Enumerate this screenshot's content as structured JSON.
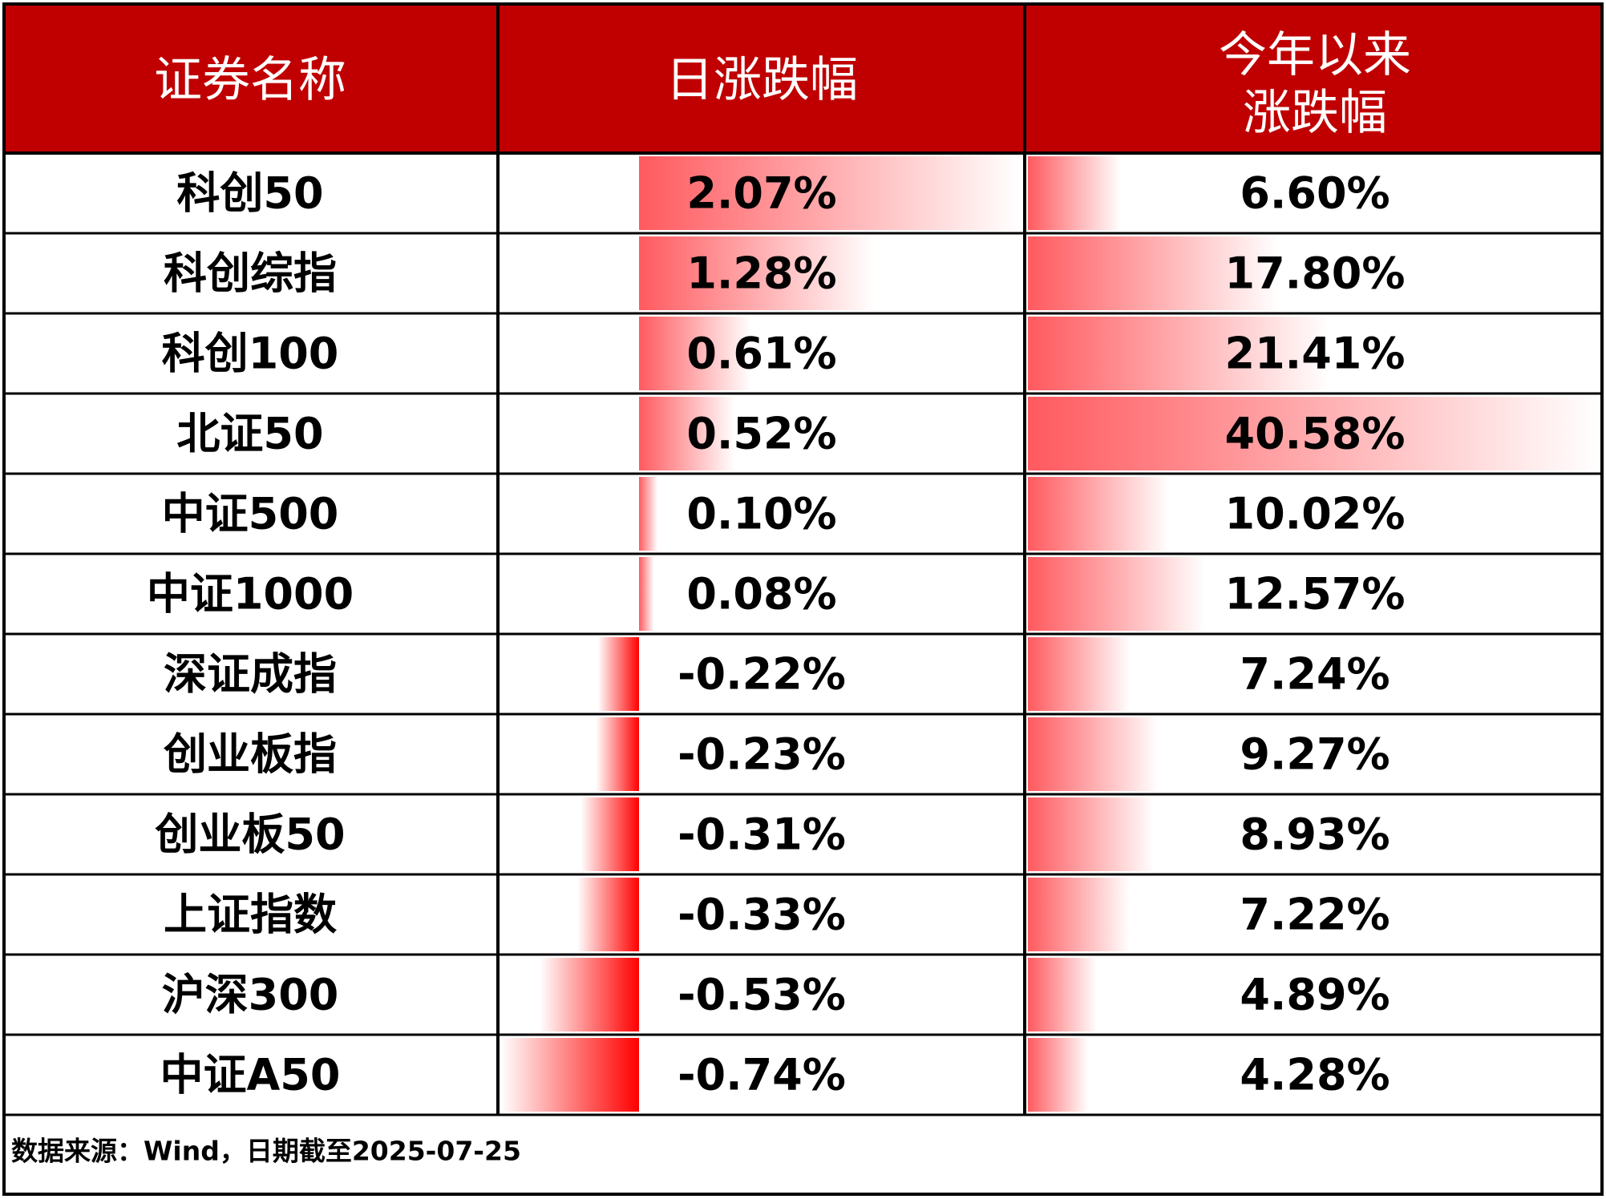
{
  "chart_data": {
    "type": "table",
    "header": {
      "name": "证券名称",
      "daily": "日涨跌幅",
      "ytd_line1": "今年以来",
      "ytd_line2": "涨跌幅"
    },
    "rows": [
      {
        "name": "科创50",
        "daily": 2.07,
        "daily_label": "2.07%",
        "ytd": 6.6,
        "ytd_label": "6.60%"
      },
      {
        "name": "科创综指",
        "daily": 1.28,
        "daily_label": "1.28%",
        "ytd": 17.8,
        "ytd_label": "17.80%"
      },
      {
        "name": "科创100",
        "daily": 0.61,
        "daily_label": "0.61%",
        "ytd": 21.41,
        "ytd_label": "21.41%"
      },
      {
        "name": "北证50",
        "daily": 0.52,
        "daily_label": "0.52%",
        "ytd": 40.58,
        "ytd_label": "40.58%"
      },
      {
        "name": "中证500",
        "daily": 0.1,
        "daily_label": "0.10%",
        "ytd": 10.02,
        "ytd_label": "10.02%"
      },
      {
        "name": "中证1000",
        "daily": 0.08,
        "daily_label": "0.08%",
        "ytd": 12.57,
        "ytd_label": "12.57%"
      },
      {
        "name": "深证成指",
        "daily": -0.22,
        "daily_label": "-0.22%",
        "ytd": 7.24,
        "ytd_label": "7.24%"
      },
      {
        "name": "创业板指",
        "daily": -0.23,
        "daily_label": "-0.23%",
        "ytd": 9.27,
        "ytd_label": "9.27%"
      },
      {
        "name": "创业板50",
        "daily": -0.31,
        "daily_label": "-0.31%",
        "ytd": 8.93,
        "ytd_label": "8.93%"
      },
      {
        "name": "上证指数",
        "daily": -0.33,
        "daily_label": "-0.33%",
        "ytd": 7.22,
        "ytd_label": "7.22%"
      },
      {
        "name": "沪深300",
        "daily": -0.53,
        "daily_label": "-0.53%",
        "ytd": 4.89,
        "ytd_label": "4.89%"
      },
      {
        "name": "中证A50",
        "daily": -0.74,
        "daily_label": "-0.74%",
        "ytd": 4.28,
        "ytd_label": "4.28%"
      }
    ],
    "footer": "数据来源：Wind，日期截至2025-07-25"
  },
  "colors": {
    "header_bg": "#c00000",
    "header_text": "#ffffff",
    "positive_bar": "#ff5a5f",
    "negative_bar": "#ff0000",
    "grid": "#000000",
    "text": "#000000"
  }
}
